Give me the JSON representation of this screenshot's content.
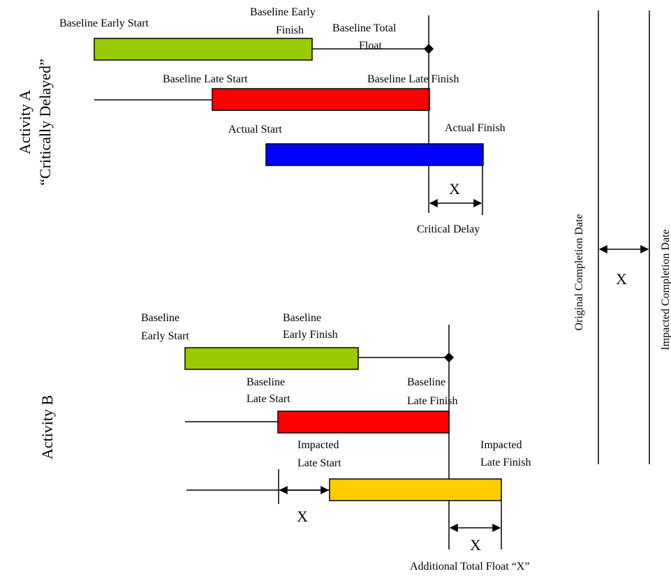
{
  "colors": {
    "early_bar": "#99cc00",
    "late_bar": "#ff0000",
    "actual_bar": "#0000ff",
    "impacted_bar": "#ffcc00",
    "line": "#000000"
  },
  "activity_a": {
    "title_line1": "Activity A",
    "title_line2": "“Critically Delayed”",
    "baseline_early_start": "Baseline Early Start",
    "baseline_early_finish_1": "Baseline Early",
    "baseline_early_finish_2": "Finish",
    "baseline_total_float_1": "Baseline Total",
    "baseline_total_float_2": "Float",
    "baseline_late_start": "Baseline Late Start",
    "baseline_late_finish": "Baseline Late Finish",
    "actual_start": "Actual Start",
    "actual_finish": "Actual Finish",
    "delay_symbol": "X",
    "critical_delay": "Critical Delay"
  },
  "activity_b": {
    "title": "Activity B",
    "baseline_early_start_1": "Baseline",
    "baseline_early_start_2": "Early Start",
    "baseline_early_finish_1": "Baseline",
    "baseline_early_finish_2": "Early Finish",
    "baseline_late_start_1": "Baseline",
    "baseline_late_start_2": "Late Start",
    "baseline_late_finish_1": "Baseline",
    "baseline_late_finish_2": "Late Finish",
    "impacted_late_start_1": "Impacted",
    "impacted_late_start_2": "Late Start",
    "impacted_late_finish_1": "Impacted",
    "impacted_late_finish_2": "Late Finish",
    "shift_symbol": "X",
    "float_symbol": "X",
    "additional_total_float": "Additional Total Float “X”"
  },
  "completion": {
    "original": "Original Completion Date",
    "impacted": "Impacted Completion Date",
    "shift_symbol": "X"
  }
}
